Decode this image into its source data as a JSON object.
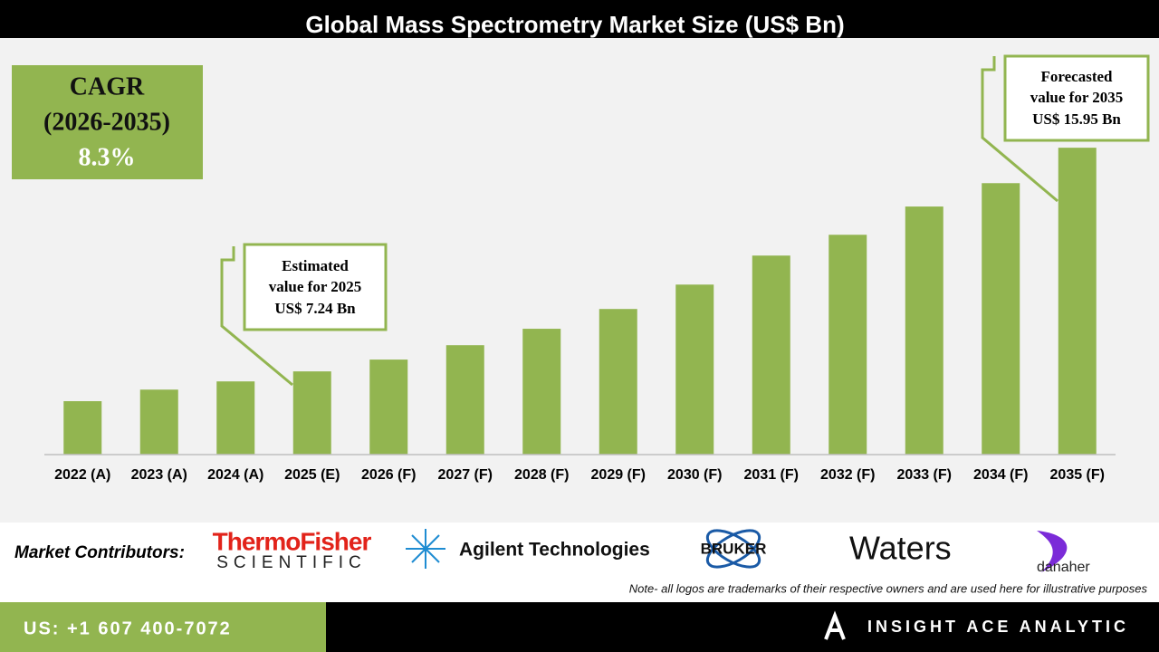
{
  "chart_data": {
    "type": "bar",
    "title": "Global Mass Spectrometry Market Size (US$ Bn)",
    "categories": [
      "2022 (A)",
      "2023 (A)",
      "2024 (A)",
      "2025 (E)",
      "2026 (F)",
      "2027 (F)",
      "2028 (F)",
      "2029 (F)",
      "2030 (F)",
      "2031 (F)",
      "2032 (F)",
      "2033 (F)",
      "2034 (F)",
      "2035 (F)"
    ],
    "values": [
      6.08,
      6.53,
      6.85,
      7.24,
      7.7,
      8.26,
      8.9,
      9.67,
      10.62,
      11.75,
      12.56,
      13.66,
      14.57,
      15.95
    ],
    "color": "#92b550",
    "ylim": [
      4,
      18
    ],
    "cagr": {
      "lines": [
        "CAGR",
        "(2026-2035)",
        "8.3%"
      ]
    },
    "estimate_callout": [
      "Estimated",
      "value for 2025",
      "US$ 7.24 Bn"
    ],
    "forecast_callout": [
      "Forecasted",
      "value for 2035",
      "US$ 15.95 Bn"
    ]
  },
  "footer": {
    "contributors_label": "Market Contributors:",
    "logos": [
      "ThermoFisher",
      "SCIENTIFIC",
      "Agilent Technologies",
      "BRUKER",
      "Waters",
      "danaher"
    ],
    "note": "Note- all logos are trademarks of their respective owners and are used here for illustrative purposes",
    "phone": "US: +1 607 400-7072",
    "brand": "INSIGHT ACE ANALYTIC"
  }
}
